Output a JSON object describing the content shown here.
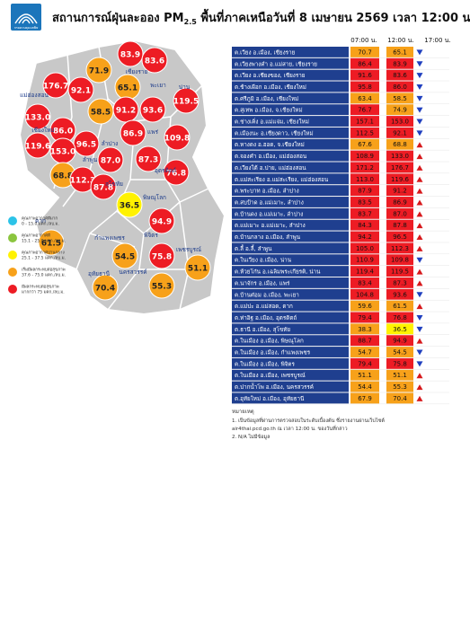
{
  "header": {
    "logo_text": "กรมควบคุมมลพิษ",
    "title_parts": [
      "สถานการณ์ฝุ่นละออง PM",
      "2.5",
      " พื้นที่ภาคเหนือวันที่ 8 เมษายน 2569 เวลา 12:00 น."
    ]
  },
  "table": {
    "columns": [
      "07:00 น.",
      "12:00 น.",
      "17:00 น."
    ],
    "rows": [
      {
        "name": "ต.เวียง อ.เมือง, เชียงราย",
        "t07": "70.7",
        "t12": "65.1",
        "trend": "down"
      },
      {
        "name": "ต.เวียงพางคำ อ.แม่สาย, เชียงราย",
        "t07": "86.4",
        "t12": "83.9",
        "trend": "down"
      },
      {
        "name": "ต.เวียง อ.เชียงของ, เชียงราย",
        "t07": "91.6",
        "t12": "83.6",
        "trend": "down"
      },
      {
        "name": "ต.ช้างเผือก อ.เมือง, เชียงใหม่",
        "t07": "95.8",
        "t12": "86.0",
        "trend": "down"
      },
      {
        "name": "ต.ศรีภูมิ อ.เมือง, เชียงใหม่",
        "t07": "63.4",
        "t12": "58.5",
        "trend": "down"
      },
      {
        "name": "ต.สุเทพ อ.เมือง, จ.เชียงใหม่",
        "t07": "76.7",
        "t12": "74.9",
        "trend": "down"
      },
      {
        "name": "ต.ช่างเคิ่ง อ.แม่แจ่ม, เชียงใหม่",
        "t07": "157.1",
        "t12": "153.0",
        "trend": "down"
      },
      {
        "name": "ต.เมืองนะ อ.เชียงดาว, เชียงใหม่",
        "t07": "112.5",
        "t12": "92.1",
        "trend": "down"
      },
      {
        "name": "ต.หางดง อ.ฮอด, จ.เชียงใหม่",
        "t07": "67.6",
        "t12": "68.8",
        "trend": "up"
      },
      {
        "name": "ต.จองคำ อ.เมือง, แม่ฮ่องสอน",
        "t07": "108.9",
        "t12": "133.0",
        "trend": "up"
      },
      {
        "name": "ต.เวียงใต้ อ.ปาย, แม่ฮ่องสอน",
        "t07": "171.2",
        "t12": "176.7",
        "trend": "up"
      },
      {
        "name": "ต.แม่สะเรียง อ.แม่สะเรียง, แม่ฮ่องสอน",
        "t07": "113.0",
        "t12": "119.6",
        "trend": "up"
      },
      {
        "name": "ต.พระบาท อ.เมือง, ลำปาง",
        "t07": "87.9",
        "t12": "91.2",
        "trend": "up"
      },
      {
        "name": "ต.สบป้าด อ.แม่เมาะ, ลำปาง",
        "t07": "83.5",
        "t12": "86.9",
        "trend": "up"
      },
      {
        "name": "ต.บ้านดง อ.แม่เมาะ, ลำปาง",
        "t07": "83.7",
        "t12": "87.0",
        "trend": "up"
      },
      {
        "name": "ต.แม่เมาะ อ.แม่เมาะ, ลำปาง",
        "t07": "84.3",
        "t12": "87.8",
        "trend": "up"
      },
      {
        "name": "ต.บ้านกลาง อ.เมือง, ลำพูน",
        "t07": "94.2",
        "t12": "96.5",
        "trend": "up"
      },
      {
        "name": "ต.ลี้ อ.ลี้, ลำพูน",
        "t07": "105.0",
        "t12": "112.3",
        "trend": "up"
      },
      {
        "name": "ต.ในเวียง อ.เมือง, น่าน",
        "t07": "110.9",
        "t12": "109.8",
        "trend": "down"
      },
      {
        "name": "ต.ห้วยโก๋น อ.เฉลิมพระเกียรติ, น่าน",
        "t07": "119.4",
        "t12": "119.5",
        "trend": "up"
      },
      {
        "name": "ต.นาจักร อ.เมือง, แพร่",
        "t07": "83.4",
        "t12": "87.3",
        "trend": "up"
      },
      {
        "name": "ต.บ้านต๋อม อ.เมือง, พะเยา",
        "t07": "104.8",
        "t12": "93.6",
        "trend": "down"
      },
      {
        "name": "ต.แม่ปะ อ.แม่สอด, ตาก",
        "t07": "59.6",
        "t12": "61.5",
        "trend": "up"
      },
      {
        "name": "ต.ท่าอิฐ อ.เมือง, อุตรดิตถ์",
        "t07": "79.4",
        "t12": "76.8",
        "trend": "down"
      },
      {
        "name": "ต.ธานี อ.เมือง, สุโขทัย",
        "t07": "38.3",
        "t12": "36.5",
        "trend": "down"
      },
      {
        "name": "ต.ในเมือง อ.เมือง, พิษณุโลก",
        "t07": "88.7",
        "t12": "94.9",
        "trend": "up"
      },
      {
        "name": "ต.ในเมือง อ.เมือง, กำแพงเพชร",
        "t07": "54.7",
        "t12": "54.5",
        "trend": "down"
      },
      {
        "name": "ต.ในเมือง อ.เมือง, พิจิตร",
        "t07": "79.4",
        "t12": "75.8",
        "trend": "down"
      },
      {
        "name": "ต.ในเมือง อ.เมือง, เพชรบูรณ์",
        "t07": "51.1",
        "t12": "51.1",
        "trend": "up"
      },
      {
        "name": "ต.ปากน้ำโพ อ.เมือง, นครสวรรค์",
        "t07": "54.4",
        "t12": "55.3",
        "trend": "up"
      },
      {
        "name": "ต.อุทัยใหม่ อ.เมือง, อุทัยธานี",
        "t07": "67.9",
        "t12": "70.4",
        "trend": "up"
      }
    ]
  },
  "map": {
    "bubbles": [
      "83.9",
      "83.6",
      "71.9",
      "65.1",
      "176.7",
      "92.1",
      "119.5",
      "133.0",
      "86.0",
      "58.5",
      "91.2",
      "93.6",
      "96.5",
      "119.6",
      "153.0",
      "86.9",
      "109.8",
      "87.0",
      "87.3",
      "68.8",
      "112.3",
      "87.8",
      "76.8",
      "36.5",
      "61.5",
      "94.9",
      "54.5",
      "75.8",
      "51.1",
      "70.4",
      "55.3"
    ],
    "provinces": [
      "เชียงราย",
      "แม่ฮ่องสอน",
      "พะเยา",
      "น่าน",
      "เชียงใหม่",
      "ลำพูน",
      "ลำปาง",
      "แพร่",
      "อุตรดิตถ์",
      "สุโขทัย",
      "ตาก",
      "พิษณุโลก",
      "กำแพงเพชร",
      "พิจิตร",
      "เพชรบูรณ์",
      "นครสวรรค์",
      "อุทัยธานี"
    ]
  },
  "legend": [
    {
      "label": "คุณภาพอากาศดีมาก",
      "range": "0 - 15.0 มคก./ลบ.ม.",
      "color": "#2cc3e8",
      "max": 15
    },
    {
      "label": "คุณภาพอากาศดี",
      "range": "15.1 - 25.0 มคก./ลบ.ม.",
      "color": "#8bc53f",
      "max": 25
    },
    {
      "label": "คุณภาพอากาศปานกลาง",
      "range": "25.1 - 37.5 มคก./ลบ.ม.",
      "color": "#fff200",
      "max": 37.5
    },
    {
      "label": "เริ่มมีผลกระทบต่อสุขภาพ",
      "range": "37.6 - 75.0 มคก./ลบ.ม.",
      "color": "#f7a11a",
      "max": 75
    },
    {
      "label": "มีผลกระทบต่อสุขภาพ",
      "range": "มากกว่า 75 มคก./ลบ.ม.",
      "color": "#ed1c24",
      "max": null
    }
  ],
  "notes": {
    "heading": "หมายเหตุ",
    "items": [
      "1. เป็นข้อมูลที่ผ่านการตรวจสอบในระดับเบื้องต้น ซึ่งรายงานผ่านเว็บไซต์",
      "air4thai.pcd.go.th ณ เวลา 12:00 น. ของวันที่กล่าว",
      "2. N/A ไม่มีข้อมูล"
    ]
  }
}
